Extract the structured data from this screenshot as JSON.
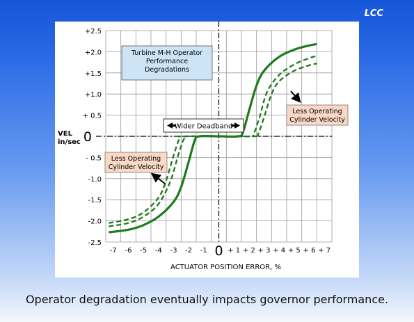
{
  "brand": "LCC",
  "caption": "Operator degradation eventually impacts governor performance.",
  "colors": {
    "curve": "#1e7a1e",
    "info_box": "#cce4f6",
    "note_box": "#f9d8c6",
    "grid": "#999999"
  },
  "chart_data": {
    "type": "line",
    "title": "Turbine M-H Operator Performance Degradations",
    "xlabel": "ACTUATOR POSITION ERROR, %",
    "ylabel": "VEL in/sec",
    "xlim": [
      -7.5,
      7.5
    ],
    "ylim": [
      -2.5,
      2.5
    ],
    "grid": true,
    "xticks": [
      "-7",
      "-6",
      "-5",
      "-4",
      "-3",
      "-2",
      "-1",
      "0",
      "+ 1",
      "+ 2",
      "+ 3",
      "+ 4",
      "+ 5",
      "+ 6",
      "+ 7"
    ],
    "yticks": [
      "-2.5",
      "-2.0",
      "-1.5",
      "-1.0",
      "- 0.5",
      "0",
      "+ 0.5",
      "+1.0",
      "+1.5",
      "+2.0",
      "+2.5"
    ],
    "annotations": {
      "deadband": "Wider Deadband",
      "note_left": "Less Operating Cylinder Velocity",
      "note_right": "Less Operating Cylinder Velocity"
    },
    "series": [
      {
        "style": "solid",
        "points": [
          [
            -7.3,
            -2.27
          ],
          [
            -6,
            -2.21
          ],
          [
            -5,
            -2.1
          ],
          [
            -4,
            -1.9
          ],
          [
            -3,
            -1.55
          ],
          [
            -2.5,
            -1.2
          ],
          [
            -2,
            -0.6
          ],
          [
            -1.6,
            -0.1
          ],
          [
            -1.3,
            0
          ],
          [
            0,
            0
          ],
          [
            1.3,
            0
          ],
          [
            1.6,
            0.1
          ],
          [
            2,
            0.6
          ],
          [
            2.5,
            1.2
          ],
          [
            3,
            1.55
          ],
          [
            4,
            1.88
          ],
          [
            5,
            2.05
          ],
          [
            6,
            2.15
          ],
          [
            6.5,
            2.18
          ]
        ]
      },
      {
        "style": "dashed",
        "points": [
          [
            -7.3,
            -2.13
          ],
          [
            -6,
            -2.05
          ],
          [
            -5,
            -1.9
          ],
          [
            -4,
            -1.6
          ],
          [
            -3.2,
            -1.05
          ],
          [
            -2.7,
            -0.45
          ],
          [
            -2.3,
            -0.05
          ],
          [
            -2,
            0
          ],
          [
            2,
            0
          ],
          [
            2.3,
            0.05
          ],
          [
            2.7,
            0.45
          ],
          [
            3.2,
            1.05
          ],
          [
            4,
            1.45
          ],
          [
            5,
            1.7
          ],
          [
            6,
            1.85
          ],
          [
            6.5,
            1.9
          ]
        ]
      },
      {
        "style": "dashed",
        "points": [
          [
            -7.3,
            -2.05
          ],
          [
            -6,
            -1.96
          ],
          [
            -5,
            -1.8
          ],
          [
            -4,
            -1.45
          ],
          [
            -3.5,
            -1.05
          ],
          [
            -3,
            -0.45
          ],
          [
            -2.6,
            -0.05
          ],
          [
            -2.3,
            0
          ],
          [
            2.3,
            0
          ],
          [
            2.6,
            0.05
          ],
          [
            3,
            0.45
          ],
          [
            3.5,
            1.0
          ],
          [
            4,
            1.3
          ],
          [
            5,
            1.55
          ],
          [
            6,
            1.68
          ],
          [
            6.5,
            1.72
          ]
        ]
      }
    ]
  }
}
